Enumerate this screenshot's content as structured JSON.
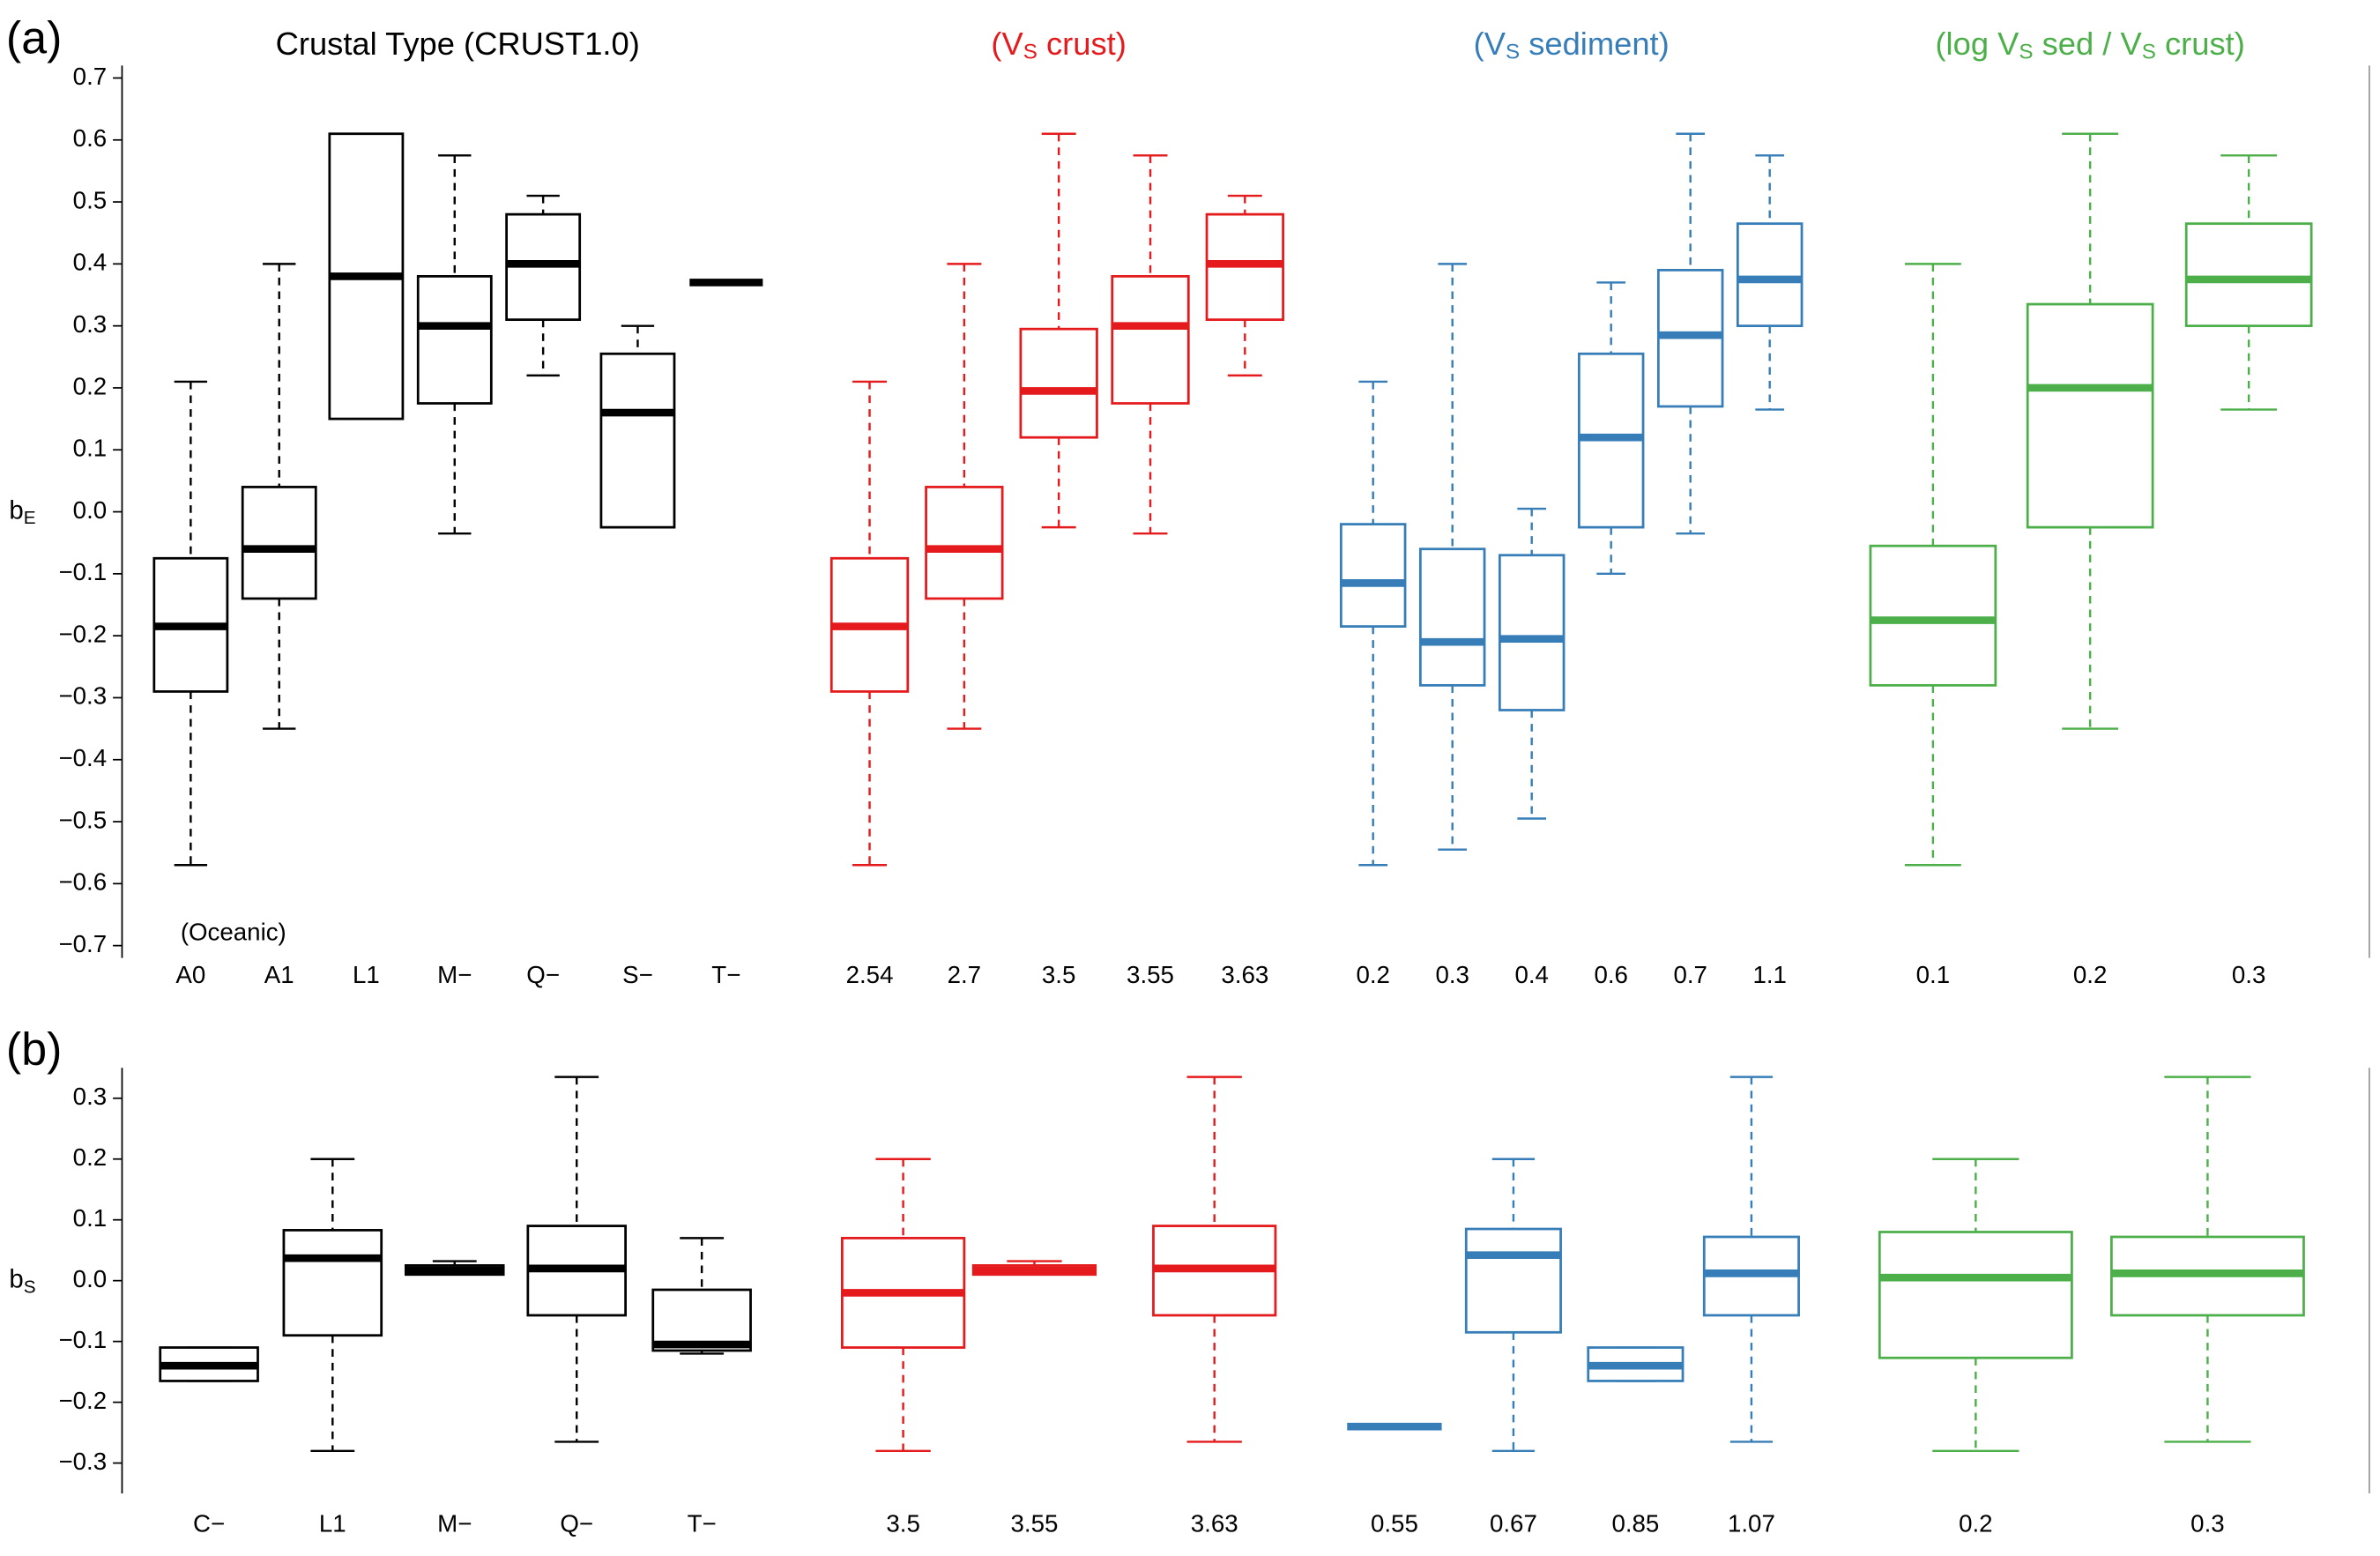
{
  "chart_data": [
    {
      "type": "box",
      "panel_label": "(a)",
      "ylabel": {
        "text": "b",
        "sub": "E"
      },
      "annotation": "(Oceanic)",
      "ylim": [
        -0.72,
        0.72
      ],
      "yticks": [
        0.7,
        0.6,
        0.5,
        0.4,
        0.3,
        0.2,
        0.1,
        {
          "value": 0,
          "label": "0.0"
        },
        {
          "value": -0.1,
          "label": "−0.1"
        },
        {
          "value": -0.2,
          "label": "−0.2"
        },
        {
          "value": -0.3,
          "label": "−0.3"
        },
        {
          "value": -0.4,
          "label": "−0.4"
        },
        {
          "value": -0.5,
          "label": "−0.5"
        },
        {
          "value": -0.6,
          "label": "−0.6"
        },
        {
          "value": -0.7,
          "label": "−0.7"
        }
      ],
      "groups": [
        {
          "title": [
            "Crustal Type (CRUST1.0)"
          ],
          "color": "#000000",
          "categories": [
            "A0",
            "A1",
            "L1",
            "M−",
            "Q−",
            "S−",
            "T−"
          ],
          "boxes": [
            {
              "min": -0.57,
              "q1": -0.29,
              "median": -0.185,
              "q3": -0.075,
              "max": 0.21
            },
            {
              "min": -0.35,
              "q1": -0.14,
              "median": -0.06,
              "q3": 0.04,
              "max": 0.4
            },
            {
              "min": 0.15,
              "q1": 0.15,
              "median": 0.38,
              "q3": 0.61,
              "max": 0.61
            },
            {
              "min": -0.035,
              "q1": 0.175,
              "median": 0.3,
              "q3": 0.38,
              "max": 0.575
            },
            {
              "min": 0.22,
              "q1": 0.31,
              "median": 0.4,
              "q3": 0.48,
              "max": 0.51
            },
            {
              "min": -0.025,
              "q1": -0.025,
              "median": 0.16,
              "q3": 0.255,
              "max": 0.3
            },
            {
              "min": 0.37,
              "q1": 0.37,
              "median": 0.37,
              "q3": 0.37,
              "max": 0.37
            }
          ]
        },
        {
          "title": [
            "(V",
            "S",
            " crust)"
          ],
          "color": "#e41a1c",
          "categories": [
            "2.54",
            "2.7",
            "3.5",
            "3.55",
            "3.63"
          ],
          "boxes": [
            {
              "min": -0.57,
              "q1": -0.29,
              "median": -0.185,
              "q3": -0.075,
              "max": 0.21
            },
            {
              "min": -0.35,
              "q1": -0.14,
              "median": -0.06,
              "q3": 0.04,
              "max": 0.4
            },
            {
              "min": -0.025,
              "q1": 0.12,
              "median": 0.195,
              "q3": 0.295,
              "max": 0.61
            },
            {
              "min": -0.035,
              "q1": 0.175,
              "median": 0.3,
              "q3": 0.38,
              "max": 0.575
            },
            {
              "min": 0.22,
              "q1": 0.31,
              "median": 0.4,
              "q3": 0.48,
              "max": 0.51
            }
          ]
        },
        {
          "title": [
            "(V",
            "S",
            " sediment)"
          ],
          "color": "#377eb8",
          "categories": [
            "0.2",
            "0.3",
            "0.4",
            "0.6",
            "0.7",
            "1.1"
          ],
          "boxes": [
            {
              "min": -0.57,
              "q1": -0.185,
              "median": -0.115,
              "q3": -0.02,
              "max": 0.21
            },
            {
              "min": -0.545,
              "q1": -0.28,
              "median": -0.21,
              "q3": -0.06,
              "max": 0.4
            },
            {
              "min": -0.495,
              "q1": -0.32,
              "median": -0.205,
              "q3": -0.07,
              "max": 0.005
            },
            {
              "min": -0.1,
              "q1": -0.025,
              "median": 0.12,
              "q3": 0.255,
              "max": 0.37
            },
            {
              "min": -0.035,
              "q1": 0.17,
              "median": 0.285,
              "q3": 0.39,
              "max": 0.61
            },
            {
              "min": 0.165,
              "q1": 0.3,
              "median": 0.375,
              "q3": 0.465,
              "max": 0.575
            }
          ]
        },
        {
          "title": [
            "(log  V",
            "S",
            " sed / V",
            "S",
            " crust)"
          ],
          "color": "#4daf4a",
          "categories": [
            "0.1",
            "0.2",
            "0.3"
          ],
          "boxes": [
            {
              "min": -0.57,
              "q1": -0.28,
              "median": -0.175,
              "q3": -0.055,
              "max": 0.4
            },
            {
              "min": -0.35,
              "q1": -0.025,
              "median": 0.2,
              "q3": 0.335,
              "max": 0.61
            },
            {
              "min": 0.165,
              "q1": 0.3,
              "median": 0.375,
              "q3": 0.465,
              "max": 0.575
            }
          ]
        }
      ]
    },
    {
      "type": "box",
      "panel_label": "(b)",
      "ylabel": {
        "text": "b",
        "sub": "S"
      },
      "ylim": [
        -0.35,
        0.35
      ],
      "yticks": [
        0.3,
        0.2,
        0.1,
        {
          "value": 0,
          "label": "0.0"
        },
        {
          "value": -0.1,
          "label": "−0.1"
        },
        {
          "value": -0.2,
          "label": "−0.2"
        },
        {
          "value": -0.3,
          "label": "−0.3"
        }
      ],
      "groups": [
        {
          "color": "#000000",
          "categories": [
            "C−",
            "L1",
            "M−",
            "Q−",
            "T−"
          ],
          "boxes": [
            {
              "min": -0.165,
              "q1": -0.165,
              "median": -0.14,
              "q3": -0.11,
              "max": -0.11
            },
            {
              "min": -0.28,
              "q1": -0.09,
              "median": 0.037,
              "q3": 0.083,
              "max": 0.2
            },
            {
              "min": 0.01,
              "q1": 0.01,
              "median": 0.017,
              "q3": 0.025,
              "max": 0.032
            },
            {
              "min": -0.265,
              "q1": -0.057,
              "median": 0.02,
              "q3": 0.09,
              "max": 0.335
            },
            {
              "min": -0.12,
              "q1": -0.115,
              "median": -0.105,
              "q3": -0.015,
              "max": 0.07
            }
          ]
        },
        {
          "color": "#e41a1c",
          "categories": [
            "3.5",
            "3.55",
            "3.63"
          ],
          "boxes": [
            {
              "min": -0.28,
              "q1": -0.11,
              "median": -0.02,
              "q3": 0.07,
              "max": 0.2
            },
            {
              "min": 0.01,
              "q1": 0.01,
              "median": 0.017,
              "q3": 0.025,
              "max": 0.032
            },
            {
              "min": -0.265,
              "q1": -0.057,
              "median": 0.02,
              "q3": 0.09,
              "max": 0.335
            }
          ]
        },
        {
          "color": "#377eb8",
          "categories": [
            "0.55",
            "0.67",
            "0.85",
            "1.07"
          ],
          "boxes": [
            {
              "min": -0.24,
              "q1": -0.24,
              "median": -0.24,
              "q3": -0.24,
              "max": -0.24
            },
            {
              "min": -0.28,
              "q1": -0.085,
              "median": 0.042,
              "q3": 0.085,
              "max": 0.2
            },
            {
              "min": -0.165,
              "q1": -0.165,
              "median": -0.14,
              "q3": -0.11,
              "max": -0.11
            },
            {
              "min": -0.265,
              "q1": -0.057,
              "median": 0.012,
              "q3": 0.072,
              "max": 0.335
            }
          ]
        },
        {
          "color": "#4daf4a",
          "categories": [
            "0.2",
            "0.3"
          ],
          "boxes": [
            {
              "min": -0.28,
              "q1": -0.127,
              "median": 0.005,
              "q3": 0.08,
              "max": 0.2
            },
            {
              "min": -0.265,
              "q1": -0.057,
              "median": 0.012,
              "q3": 0.072,
              "max": 0.335
            }
          ]
        }
      ]
    }
  ]
}
